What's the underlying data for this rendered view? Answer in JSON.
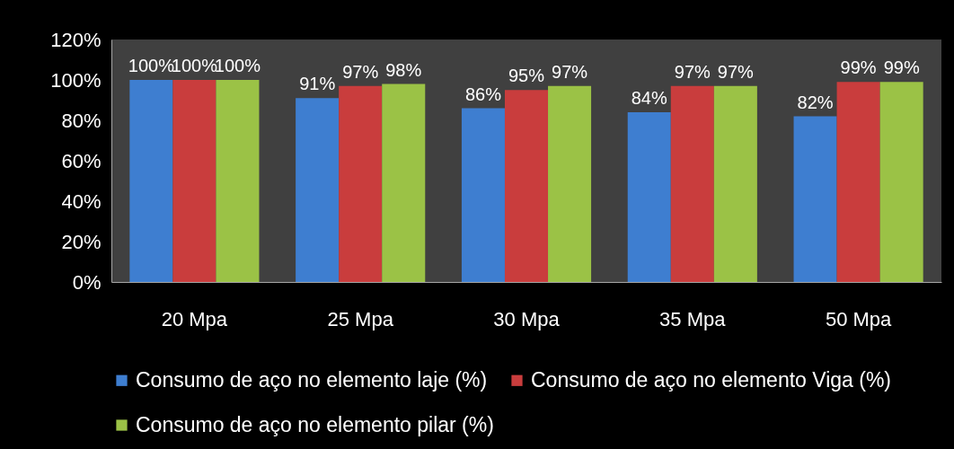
{
  "chart_data": {
    "type": "bar",
    "categories": [
      "20 Mpa",
      "25 Mpa",
      "30 Mpa",
      "35 Mpa",
      "50 Mpa"
    ],
    "series": [
      {
        "name": "Consumo de aço no elemento laje (%)",
        "color": "#3e7ed0",
        "values": [
          100,
          91,
          86,
          84,
          82
        ],
        "value_labels": [
          "100%",
          "91%",
          "86%",
          "84%",
          "82%"
        ]
      },
      {
        "name": "Consumo de aço no elemento Viga (%)",
        "color": "#c93d3d",
        "values": [
          100,
          97,
          95,
          97,
          99
        ],
        "value_labels": [
          "100%",
          "97%",
          "95%",
          "97%",
          "99%"
        ]
      },
      {
        "name": "Consumo de aço no elemento pilar (%)",
        "color": "#9bc246",
        "values": [
          100,
          98,
          97,
          97,
          99
        ],
        "value_labels": [
          "100%",
          "98%",
          "97%",
          "97%",
          "99%"
        ]
      }
    ],
    "ylim": [
      0,
      120
    ],
    "yticks": [
      {
        "value": 0,
        "label": "0%"
      },
      {
        "value": 20,
        "label": "20%"
      },
      {
        "value": 40,
        "label": "40%"
      },
      {
        "value": 60,
        "label": "60%"
      },
      {
        "value": 80,
        "label": "80%"
      },
      {
        "value": 100,
        "label": "100%"
      },
      {
        "value": 120,
        "label": "120%"
      }
    ],
    "legend": "bottom"
  }
}
